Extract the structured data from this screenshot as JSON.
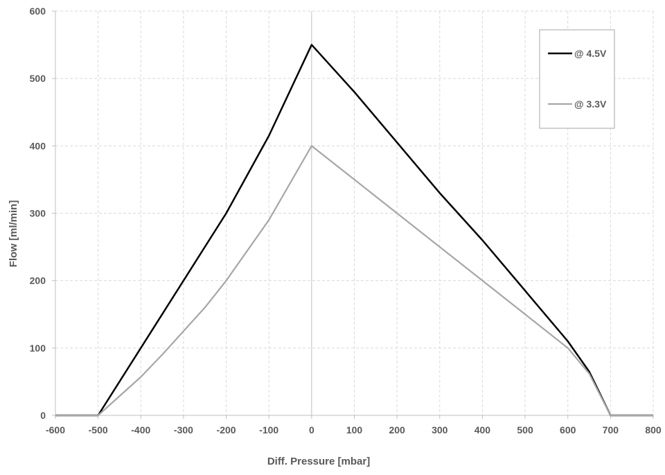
{
  "chart_data": {
    "type": "line",
    "title": "",
    "xlabel": "Diff. Pressure [mbar]",
    "ylabel": "Flow [ml/min]",
    "xlim": [
      -600,
      800
    ],
    "ylim": [
      0,
      600
    ],
    "xticks": [
      -600,
      -500,
      -400,
      -300,
      -200,
      -100,
      0,
      100,
      200,
      300,
      400,
      500,
      600,
      700,
      800
    ],
    "yticks": [
      0,
      100,
      200,
      300,
      400,
      500,
      600
    ],
    "grid": true,
    "legend_position": "top-right",
    "series": [
      {
        "name": "@ 4.5V",
        "color": "#000000",
        "points": [
          [
            -600,
            0
          ],
          [
            -500,
            0
          ],
          [
            -400,
            100
          ],
          [
            -300,
            200
          ],
          [
            -200,
            300
          ],
          [
            -100,
            415
          ],
          [
            0,
            550
          ],
          [
            100,
            480
          ],
          [
            200,
            405
          ],
          [
            300,
            330
          ],
          [
            400,
            260
          ],
          [
            500,
            185
          ],
          [
            600,
            110
          ],
          [
            650,
            65
          ],
          [
            700,
            0
          ],
          [
            800,
            0
          ]
        ]
      },
      {
        "name": "@ 3.3V",
        "color": "#a6a6a6",
        "points": [
          [
            -600,
            0
          ],
          [
            -500,
            0
          ],
          [
            -400,
            57
          ],
          [
            -350,
            90
          ],
          [
            -250,
            160
          ],
          [
            -200,
            200
          ],
          [
            -100,
            290
          ],
          [
            0,
            400
          ],
          [
            100,
            350
          ],
          [
            200,
            300
          ],
          [
            300,
            250
          ],
          [
            400,
            200
          ],
          [
            500,
            150
          ],
          [
            600,
            100
          ],
          [
            650,
            62
          ],
          [
            700,
            0
          ],
          [
            800,
            0
          ]
        ]
      }
    ]
  }
}
